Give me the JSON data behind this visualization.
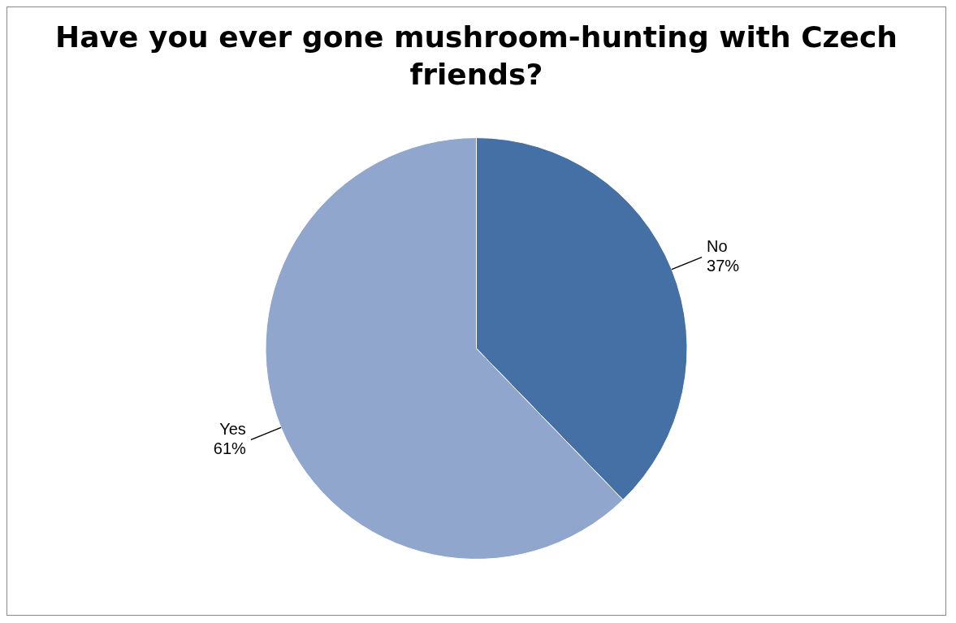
{
  "chart_data": {
    "type": "pie",
    "title": "Have you ever gone mushroom-hunting with Czech friends?",
    "categories": [
      "No",
      "Yes"
    ],
    "values": [
      37,
      61
    ],
    "colors": [
      "#4470a5",
      "#91a6cc"
    ],
    "value_labels": [
      "37%",
      "61%"
    ],
    "legend": false
  }
}
